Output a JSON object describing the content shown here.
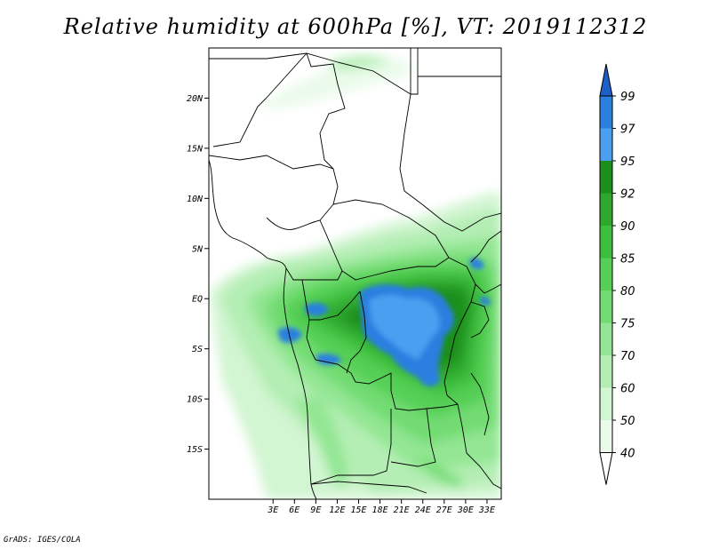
{
  "title": "Relative humidity at 600hPa [%], VT: 2019112312",
  "credit": "GrADS: IGES/COLA",
  "map": {
    "lon_range": [
      -6,
      35
    ],
    "lat_range": [
      -20,
      25
    ],
    "lon_ticks": [
      "3E",
      "6E",
      "9E",
      "12E",
      "15E",
      "18E",
      "21E",
      "24E",
      "27E",
      "30E",
      "33E"
    ],
    "lat_ticks": [
      "20N",
      "15N",
      "10N",
      "5N",
      "EQ",
      "5S",
      "10S",
      "15S"
    ],
    "field": "relative humidity",
    "units": "%"
  },
  "colorbar": {
    "labels": [
      "99",
      "97",
      "95",
      "92",
      "90",
      "85",
      "80",
      "75",
      "70",
      "60",
      "50",
      "40"
    ],
    "colors": [
      "#1e5fc8",
      "#2b7fe0",
      "#4a9ff0",
      "#1b8f1b",
      "#2da82d",
      "#3cbf3c",
      "#55cf55",
      "#72dc72",
      "#93e693",
      "#b4eeb4",
      "#d2f5d2",
      "#eafbea"
    ]
  }
}
